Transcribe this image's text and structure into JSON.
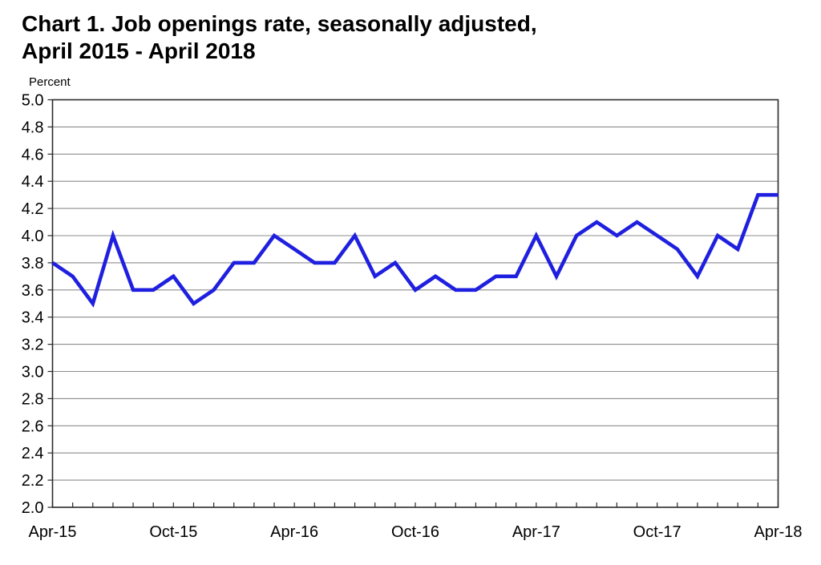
{
  "header": {
    "title_line1": "Chart 1. Job openings rate, seasonally adjusted,",
    "title_line2": "April 2015 - April 2018"
  },
  "chart_data": {
    "type": "line",
    "title": "Chart 1. Job openings rate, seasonally adjusted, April 2015 - April 2018",
    "ylabel": "Percent",
    "xlabel": "",
    "ylim": [
      2.0,
      5.0
    ],
    "ytick_step": 0.2,
    "grid": true,
    "legend_position": "none",
    "x": [
      "Apr-15",
      "May-15",
      "Jun-15",
      "Jul-15",
      "Aug-15",
      "Sep-15",
      "Oct-15",
      "Nov-15",
      "Dec-15",
      "Jan-16",
      "Feb-16",
      "Mar-16",
      "Apr-16",
      "May-16",
      "Jun-16",
      "Jul-16",
      "Aug-16",
      "Sep-16",
      "Oct-16",
      "Nov-16",
      "Dec-16",
      "Jan-17",
      "Feb-17",
      "Mar-17",
      "Apr-17",
      "May-17",
      "Jun-17",
      "Jul-17",
      "Aug-17",
      "Sep-17",
      "Oct-17",
      "Nov-17",
      "Dec-17",
      "Jan-18",
      "Feb-18",
      "Mar-18",
      "Apr-18"
    ],
    "series": [
      {
        "name": "Job openings rate",
        "values": [
          3.8,
          3.7,
          3.5,
          4.0,
          3.6,
          3.6,
          3.7,
          3.5,
          3.6,
          3.8,
          3.8,
          4.0,
          3.9,
          3.8,
          3.8,
          4.0,
          3.7,
          3.8,
          3.6,
          3.7,
          3.6,
          3.6,
          3.7,
          3.7,
          4.0,
          3.7,
          4.0,
          4.1,
          4.0,
          4.1,
          4.0,
          3.9,
          3.7,
          4.0,
          3.9,
          4.3,
          4.3
        ]
      }
    ],
    "x_labeled_ticks": [
      "Apr-15",
      "Oct-15",
      "Apr-16",
      "Oct-16",
      "Apr-17",
      "Oct-17",
      "Apr-18"
    ],
    "colors": {
      "line": "#1f1fe0",
      "grid": "#8c8c8c",
      "frame": "#2b2b2b",
      "text": "#000000",
      "background": "#ffffff"
    }
  }
}
